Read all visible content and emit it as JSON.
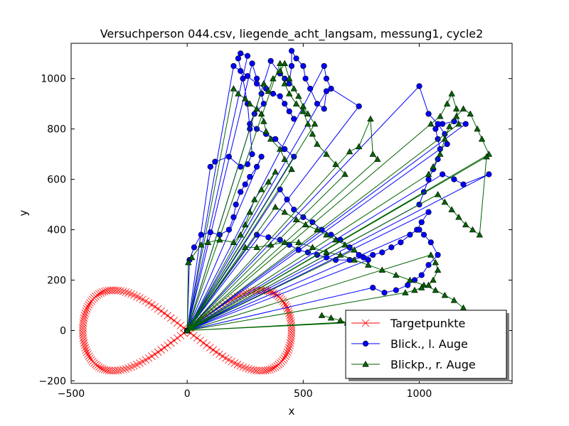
{
  "chart_data": {
    "type": "line",
    "title": "Versuchperson 044.csv, liegende_acht_langsam, messung1, cycle2",
    "xlabel": "x",
    "ylabel": "y",
    "xlim": [
      -500,
      1400
    ],
    "ylim": [
      -210,
      1140
    ],
    "x_ticks": [
      -500,
      0,
      500,
      1000
    ],
    "y_ticks": [
      -200,
      0,
      200,
      400,
      600,
      800,
      1000
    ],
    "grid": false,
    "legend": {
      "placement": "lower-right"
    },
    "series": [
      {
        "name": "Targetpunkte",
        "color": "#ff0000",
        "marker": "x",
        "curve": "figure-eight",
        "curve_params": {
          "center": [
            0,
            0
          ],
          "half_width": 450,
          "half_height": 160,
          "n_points": 200
        }
      },
      {
        "name": "Blick., l. Auge",
        "color": "#0000ff",
        "marker": "o",
        "points": [
          [
            0,
            0
          ],
          [
            10,
            280
          ],
          [
            30,
            330
          ],
          [
            60,
            380
          ],
          [
            100,
            390
          ],
          [
            140,
            380
          ],
          [
            180,
            400
          ],
          [
            200,
            450
          ],
          [
            210,
            500
          ],
          [
            230,
            550
          ],
          [
            250,
            580
          ],
          [
            270,
            610
          ],
          [
            300,
            650
          ],
          [
            320,
            690
          ],
          [
            0,
            0
          ],
          [
            100,
            650
          ],
          [
            120,
            670
          ],
          [
            180,
            690
          ],
          [
            230,
            650
          ],
          [
            260,
            660
          ],
          [
            280,
            700
          ],
          [
            270,
            800
          ],
          [
            260,
            900
          ],
          [
            240,
            1000
          ],
          [
            220,
            1080
          ],
          [
            230,
            1100
          ],
          [
            260,
            1090
          ],
          [
            0,
            0
          ],
          [
            280,
            1060
          ],
          [
            300,
            1000
          ],
          [
            320,
            940
          ],
          [
            330,
            900
          ],
          [
            290,
            860
          ],
          [
            270,
            820
          ],
          [
            300,
            800
          ],
          [
            340,
            780
          ],
          [
            380,
            760
          ],
          [
            420,
            720
          ],
          [
            460,
            690
          ],
          [
            0,
            0
          ],
          [
            360,
            1070
          ],
          [
            400,
            1020
          ],
          [
            420,
            1000
          ],
          [
            440,
            980
          ],
          [
            450,
            1050
          ],
          [
            450,
            1110
          ],
          [
            470,
            1080
          ],
          [
            500,
            1050
          ],
          [
            510,
            1000
          ],
          [
            530,
            960
          ],
          [
            560,
            900
          ],
          [
            590,
            880
          ],
          [
            600,
            950
          ],
          [
            0,
            0
          ],
          [
            590,
            1050
          ],
          [
            600,
            1000
          ],
          [
            620,
            960
          ],
          [
            740,
            890
          ],
          [
            0,
            0
          ],
          [
            300,
            380
          ],
          [
            350,
            370
          ],
          [
            400,
            360
          ],
          [
            440,
            340
          ],
          [
            480,
            320
          ],
          [
            520,
            310
          ],
          [
            560,
            300
          ],
          [
            600,
            290
          ],
          [
            640,
            280
          ],
          [
            700,
            280
          ],
          [
            760,
            290
          ],
          [
            800,
            300
          ],
          [
            840,
            310
          ],
          [
            880,
            330
          ],
          [
            920,
            350
          ],
          [
            960,
            380
          ],
          [
            990,
            400
          ],
          [
            1010,
            430
          ],
          [
            1040,
            470
          ],
          [
            0,
            0
          ],
          [
            1000,
            500
          ],
          [
            1020,
            550
          ],
          [
            1040,
            600
          ],
          [
            1060,
            640
          ],
          [
            1080,
            680
          ],
          [
            1090,
            720
          ],
          [
            1080,
            760
          ],
          [
            1070,
            800
          ],
          [
            1100,
            820
          ],
          [
            1150,
            830
          ],
          [
            1200,
            820
          ],
          [
            0,
            0
          ],
          [
            1000,
            970
          ],
          [
            1040,
            860
          ],
          [
            1080,
            820
          ],
          [
            1110,
            780
          ],
          [
            1120,
            740
          ],
          [
            0,
            0
          ],
          [
            1100,
            620
          ],
          [
            1150,
            600
          ],
          [
            1190,
            580
          ],
          [
            1300,
            620
          ],
          [
            0,
            0
          ],
          [
            1000,
            400
          ],
          [
            1020,
            380
          ],
          [
            1050,
            350
          ],
          [
            1080,
            300
          ],
          [
            1040,
            260
          ],
          [
            1010,
            220
          ],
          [
            980,
            200
          ],
          [
            950,
            180
          ],
          [
            900,
            160
          ],
          [
            850,
            150
          ],
          [
            800,
            170
          ],
          [
            0,
            0
          ],
          [
            400,
            560
          ],
          [
            430,
            520
          ],
          [
            460,
            480
          ],
          [
            500,
            450
          ],
          [
            540,
            430
          ],
          [
            580,
            400
          ],
          [
            620,
            380
          ],
          [
            660,
            360
          ],
          [
            700,
            330
          ],
          [
            740,
            300
          ],
          [
            780,
            280
          ],
          [
            0,
            0
          ],
          [
            200,
            1050
          ],
          [
            230,
            1030
          ],
          [
            260,
            1010
          ],
          [
            300,
            980
          ],
          [
            340,
            960
          ],
          [
            370,
            940
          ],
          [
            400,
            930
          ],
          [
            420,
            900
          ],
          [
            440,
            870
          ],
          [
            460,
            840
          ]
        ]
      },
      {
        "name": "Blickp., r. Auge",
        "color": "#006400",
        "marker": "^",
        "points": [
          [
            0,
            0
          ],
          [
            5,
            270
          ],
          [
            20,
            290
          ],
          [
            60,
            340
          ],
          [
            90,
            350
          ],
          [
            140,
            360
          ],
          [
            200,
            350
          ],
          [
            230,
            380
          ],
          [
            250,
            420
          ],
          [
            270,
            470
          ],
          [
            290,
            520
          ],
          [
            320,
            560
          ],
          [
            350,
            590
          ],
          [
            380,
            630
          ],
          [
            0,
            0
          ],
          [
            200,
            960
          ],
          [
            220,
            940
          ],
          [
            250,
            920
          ],
          [
            270,
            900
          ],
          [
            300,
            880
          ],
          [
            320,
            860
          ],
          [
            330,
            830
          ],
          [
            340,
            790
          ],
          [
            360,
            760
          ],
          [
            400,
            720
          ],
          [
            420,
            680
          ],
          [
            450,
            640
          ],
          [
            0,
            0
          ],
          [
            330,
            980
          ],
          [
            350,
            950
          ],
          [
            370,
            1000
          ],
          [
            400,
            1030
          ],
          [
            420,
            1060
          ],
          [
            440,
            1000
          ],
          [
            460,
            960
          ],
          [
            480,
            930
          ],
          [
            500,
            890
          ],
          [
            520,
            860
          ],
          [
            550,
            820
          ],
          [
            0,
            0
          ],
          [
            400,
            1060
          ],
          [
            420,
            980
          ],
          [
            440,
            940
          ],
          [
            470,
            900
          ],
          [
            500,
            870
          ],
          [
            520,
            820
          ],
          [
            540,
            780
          ],
          [
            560,
            740
          ],
          [
            600,
            700
          ],
          [
            640,
            660
          ],
          [
            680,
            620
          ],
          [
            0,
            0
          ],
          [
            700,
            710
          ],
          [
            740,
            730
          ],
          [
            790,
            840
          ],
          [
            800,
            700
          ],
          [
            820,
            680
          ],
          [
            0,
            0
          ],
          [
            250,
            330
          ],
          [
            300,
            330
          ],
          [
            360,
            340
          ],
          [
            420,
            350
          ],
          [
            480,
            350
          ],
          [
            540,
            330
          ],
          [
            600,
            310
          ],
          [
            660,
            300
          ],
          [
            720,
            280
          ],
          [
            780,
            260
          ],
          [
            840,
            240
          ],
          [
            900,
            220
          ],
          [
            960,
            200
          ],
          [
            1020,
            180
          ],
          [
            1070,
            160
          ],
          [
            1110,
            140
          ],
          [
            1150,
            120
          ],
          [
            1190,
            90
          ],
          [
            1230,
            60
          ],
          [
            0,
            0
          ],
          [
            1040,
            620
          ],
          [
            1060,
            650
          ],
          [
            1090,
            700
          ],
          [
            1110,
            760
          ],
          [
            1130,
            810
          ],
          [
            1160,
            850
          ],
          [
            1190,
            880
          ],
          [
            1220,
            860
          ],
          [
            1250,
            800
          ],
          [
            1270,
            760
          ],
          [
            1300,
            700
          ],
          [
            0,
            0
          ],
          [
            1050,
            820
          ],
          [
            1090,
            850
          ],
          [
            1120,
            900
          ],
          [
            1140,
            940
          ],
          [
            1160,
            880
          ],
          [
            1170,
            820
          ],
          [
            0,
            0
          ],
          [
            1080,
            540
          ],
          [
            1110,
            510
          ],
          [
            1140,
            480
          ],
          [
            1170,
            450
          ],
          [
            1200,
            420
          ],
          [
            1230,
            400
          ],
          [
            1260,
            380
          ],
          [
            1290,
            690
          ],
          [
            0,
            0
          ],
          [
            1050,
            300
          ],
          [
            1070,
            270
          ],
          [
            1080,
            240
          ],
          [
            1060,
            200
          ],
          [
            1040,
            180
          ],
          [
            1010,
            170
          ],
          [
            980,
            160
          ],
          [
            940,
            150
          ],
          [
            0,
            0
          ],
          [
            380,
            490
          ],
          [
            420,
            470
          ],
          [
            470,
            440
          ],
          [
            510,
            420
          ],
          [
            560,
            400
          ],
          [
            600,
            380
          ],
          [
            640,
            360
          ],
          [
            680,
            340
          ],
          [
            720,
            320
          ],
          [
            0,
            0
          ],
          [
            690,
            30
          ],
          [
            660,
            40
          ],
          [
            620,
            50
          ],
          [
            580,
            60
          ]
        ]
      }
    ]
  }
}
